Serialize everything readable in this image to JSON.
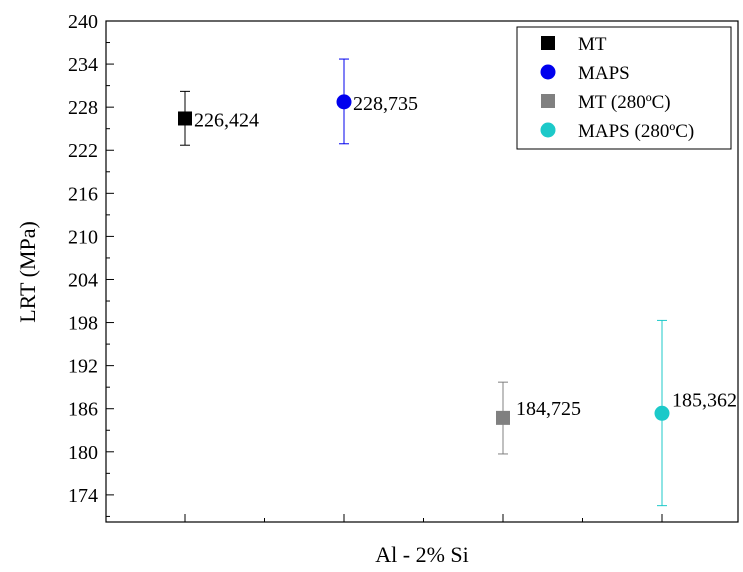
{
  "chart_data": {
    "type": "scatter",
    "title": "",
    "xlabel": "Al - 2% Si",
    "ylabel": "LRT (MPa)",
    "ylim": [
      170,
      240
    ],
    "yticks": [
      174,
      180,
      186,
      192,
      198,
      204,
      210,
      216,
      222,
      228,
      234,
      240
    ],
    "ytick_labels": [
      "174",
      "180",
      "186",
      "192",
      "198",
      "204",
      "210",
      "216",
      "222",
      "228",
      "234",
      "240"
    ],
    "grid": false,
    "legend_position": "top-right",
    "series": [
      {
        "name": "MT",
        "marker": "square",
        "color": "#000000",
        "errcolor": "#000000",
        "x": 1,
        "y": 226.424,
        "err_low": 222.7,
        "err_high": 230.2,
        "label": "226,424"
      },
      {
        "name": "MAPS",
        "marker": "circle",
        "color": "#0000ee",
        "errcolor": "#0000ee",
        "x": 2,
        "y": 228.735,
        "err_low": 222.9,
        "err_high": 234.7,
        "label": "228,735"
      },
      {
        "name": "MT (280ºC)",
        "marker": "square",
        "color": "#808080",
        "errcolor": "#808080",
        "x": 3,
        "y": 184.725,
        "err_low": 179.7,
        "err_high": 189.7,
        "label": "184,725"
      },
      {
        "name": "MAPS (280ºC)",
        "marker": "circle",
        "color": "#1cc9c9",
        "errcolor": "#1cc9c9",
        "x": 4,
        "y": 185.362,
        "err_low": 172.5,
        "err_high": 198.3,
        "label": "185,362"
      }
    ]
  }
}
